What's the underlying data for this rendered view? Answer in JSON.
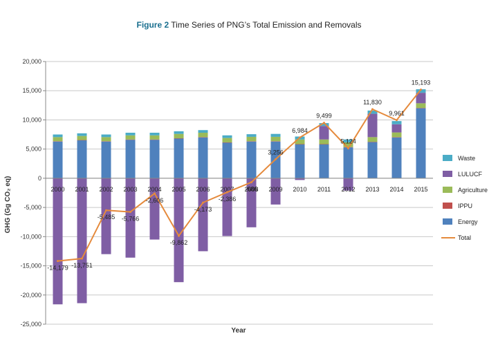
{
  "caption": {
    "figure_number": "Figure 2",
    "text": "Time Series of PNG’s Total Emission and Removals"
  },
  "colors": {
    "Waste": "#4bacc6",
    "LULUCF": "#7f5ea4",
    "Agriculture": "#9bbb59",
    "IPPU": "#c0504d",
    "Energy": "#4f81bd",
    "Total": "#e58a3c"
  },
  "chart_data": {
    "type": "bar",
    "title": "",
    "xlabel": "Year",
    "ylabel": "GHG (Gg CO₂ eq)",
    "ylim": [
      -25000,
      20000
    ],
    "yticks": [
      20000,
      15000,
      10000,
      5000,
      0,
      -5000,
      -10000,
      -15000,
      -20000,
      -25000
    ],
    "ytick_labels": [
      "20,000",
      "15,000",
      "10,000",
      "5,000",
      "0",
      "-5,000",
      "-10,000",
      "-15,000",
      "-20,000",
      "-25,000"
    ],
    "grid": true,
    "legend_position": "right",
    "categories": [
      "2000",
      "2001",
      "2002",
      "2003",
      "2004",
      "2005",
      "2006",
      "2007",
      "2008",
      "2009",
      "2010",
      "2011",
      "2012",
      "2013",
      "2014",
      "2015"
    ],
    "series": [
      {
        "name": "Energy",
        "kind": "bar",
        "values": [
          6300,
          6500,
          6300,
          6600,
          6600,
          6800,
          7000,
          6100,
          6300,
          6300,
          5800,
          5800,
          5300,
          6200,
          7000,
          12000
        ]
      },
      {
        "name": "IPPU",
        "kind": "bar",
        "values": [
          50,
          50,
          50,
          50,
          50,
          50,
          50,
          50,
          50,
          50,
          50,
          50,
          50,
          50,
          50,
          50
        ]
      },
      {
        "name": "Agriculture",
        "kind": "bar",
        "values": [
          700,
          700,
          700,
          700,
          700,
          750,
          750,
          750,
          750,
          750,
          800,
          800,
          800,
          800,
          800,
          800
        ]
      },
      {
        "name": "LULUCF",
        "kind": "bar",
        "values": [
          -21600,
          -21400,
          -13000,
          -13600,
          -10500,
          -17800,
          -12500,
          -9900,
          -8400,
          -4500,
          -300,
          2300,
          -2100,
          4000,
          1400,
          1800
        ]
      },
      {
        "name": "Waste",
        "kind": "bar",
        "values": [
          450,
          450,
          450,
          450,
          450,
          450,
          450,
          450,
          450,
          500,
          500,
          500,
          500,
          550,
          550,
          600
        ]
      },
      {
        "name": "Total",
        "kind": "line",
        "values": [
          -14179,
          -13751,
          -5485,
          -5766,
          -2606,
          -9862,
          -4173,
          -2386,
          -686,
          3256,
          6984,
          9499,
          5124,
          11830,
          9961,
          15193
        ]
      }
    ],
    "data_labels": [
      "-14,179",
      "-13,751",
      "-5,485",
      "-5,766",
      "-2,606",
      "-9,862",
      "-4,173",
      "-2,386",
      "-686",
      "3,256",
      "6,984",
      "9,499",
      "5,124",
      "11,830",
      "9,961",
      "15,193"
    ],
    "legend": [
      "Waste",
      "LULUCF",
      "Agriculture",
      "IPPU",
      "Energy",
      "Total"
    ]
  }
}
